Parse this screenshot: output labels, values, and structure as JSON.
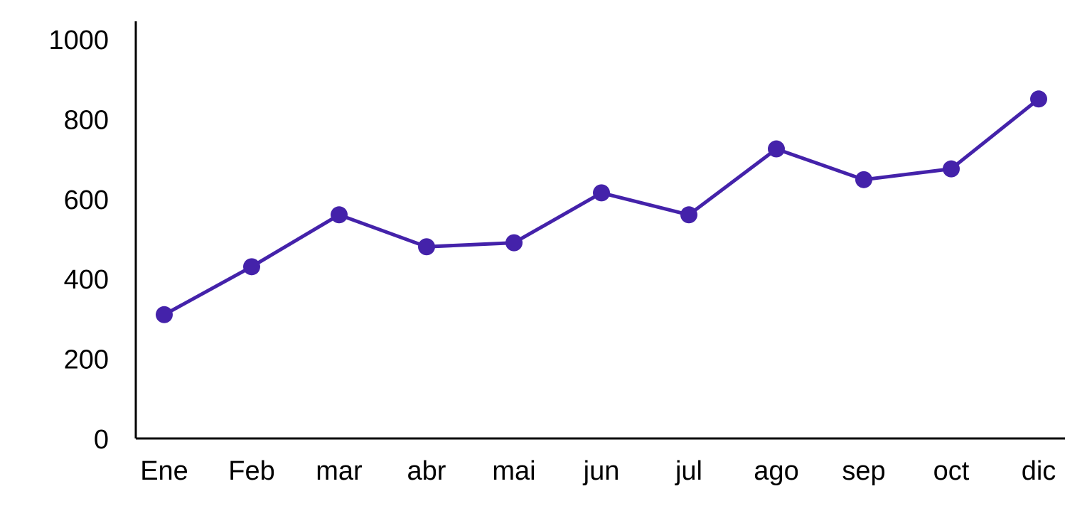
{
  "chart_data": {
    "type": "line",
    "title": "",
    "xlabel": "",
    "ylabel": "",
    "categories": [
      "Ene",
      "Feb",
      "mar",
      "abr",
      "mai",
      "jun",
      "jul",
      "ago",
      "sep",
      "oct",
      "dic"
    ],
    "series": [
      {
        "values": [
          310,
          430,
          560,
          480,
          490,
          615,
          560,
          725,
          648,
          675,
          850
        ],
        "color": "#4422aa"
      }
    ],
    "ylim": [
      0,
      1000
    ],
    "yticks": [
      0,
      200,
      400,
      600,
      800,
      1000
    ],
    "grid": false,
    "legend": "none"
  }
}
